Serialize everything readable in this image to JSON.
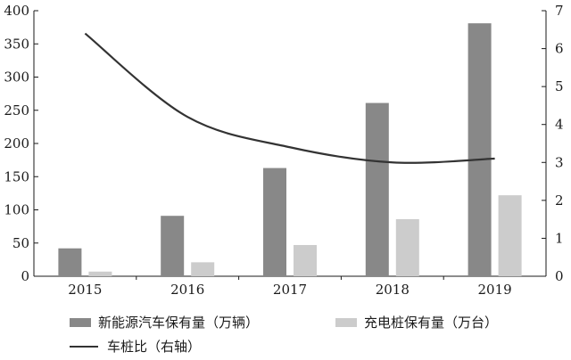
{
  "chart_data": {
    "type": "bar",
    "categories": [
      "2015",
      "2016",
      "2017",
      "2018",
      "2019"
    ],
    "series": [
      {
        "name": "新能源汽车保有量（万辆）",
        "type": "bar",
        "axis": "left",
        "color": "#888888",
        "values": [
          42,
          91,
          163,
          261,
          381
        ]
      },
      {
        "name": "充电桩保有量（万台）",
        "type": "bar",
        "axis": "left",
        "color": "#cccccc",
        "values": [
          7,
          21,
          47,
          86,
          122
        ]
      },
      {
        "name": "车桩比（右轴）",
        "type": "line",
        "axis": "right",
        "color": "#333333",
        "values": [
          6.4,
          4.2,
          3.4,
          3.0,
          3.1
        ]
      }
    ],
    "ylim": [
      0,
      400
    ],
    "yticks": [
      "0",
      "50",
      "100",
      "150",
      "200",
      "250",
      "300",
      "350",
      "400"
    ],
    "y2lim": [
      0,
      7
    ],
    "y2ticks": [
      "0",
      "1",
      "2",
      "3",
      "4",
      "5",
      "6",
      "7"
    ],
    "title": "",
    "xlabel": "",
    "ylabel": "",
    "grid": false,
    "legend_position": "bottom"
  }
}
